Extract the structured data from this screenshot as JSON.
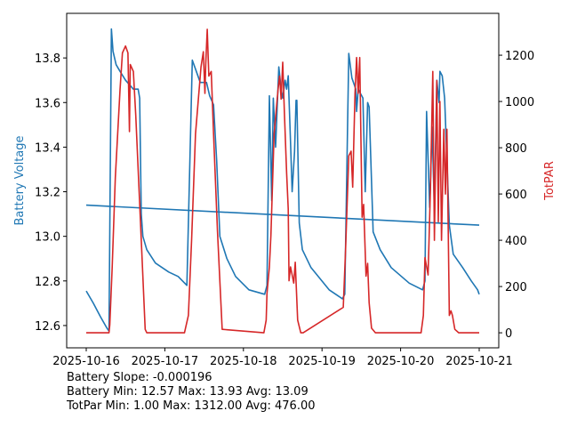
{
  "chart_data": {
    "type": "line",
    "x_start_date": "2025-10-16",
    "x_unit": "days since 2025-10-16",
    "xlim": [
      -0.249,
      5.249
    ],
    "x_ticks": [
      0,
      1,
      2,
      3,
      4,
      5
    ],
    "x_tick_labels": [
      "2025-10-16",
      "2025-10-17",
      "2025-10-18",
      "2025-10-19",
      "2025-10-20",
      "2025-10-21"
    ],
    "left_axis": {
      "label": "Battery Voltage",
      "color": "#1f77b4",
      "ylim": [
        12.5,
        14.0
      ],
      "ticks": [
        12.6,
        12.8,
        13.0,
        13.2,
        13.4,
        13.6,
        13.8
      ],
      "tick_labels": [
        "12.6",
        "12.8",
        "13.0",
        "13.2",
        "13.4",
        "13.6",
        "13.8"
      ]
    },
    "right_axis": {
      "label": "TotPAR",
      "color": "#d62728",
      "ylim": [
        -65,
        1381
      ],
      "ticks": [
        0,
        200,
        400,
        600,
        800,
        1000,
        1200
      ],
      "tick_labels": [
        "0",
        "200",
        "400",
        "600",
        "800",
        "1000",
        "1200"
      ]
    },
    "series": [
      {
        "name": "Battery Voltage",
        "axis": "left",
        "color": "#1f77b4",
        "x": [
          0,
          0.09,
          0.18,
          0.26,
          0.29,
          0.32,
          0.34,
          0.38,
          0.43,
          0.5,
          0.6,
          0.66,
          0.68,
          0.7,
          0.72,
          0.77,
          0.88,
          1.05,
          1.17,
          1.28,
          1.3,
          1.35,
          1.4,
          1.45,
          1.53,
          1.57,
          1.62,
          1.66,
          1.7,
          1.79,
          1.9,
          2.07,
          2.27,
          2.3,
          2.33,
          2.36,
          2.38,
          2.41,
          2.45,
          2.48,
          2.5,
          2.53,
          2.55,
          2.57,
          2.6,
          2.62,
          2.65,
          2.67,
          2.68,
          2.71,
          2.75,
          2.86,
          3.09,
          3.26,
          3.29,
          3.34,
          3.38,
          3.43,
          3.44,
          3.46,
          3.52,
          3.55,
          3.58,
          3.6,
          3.65,
          3.74,
          3.88,
          4.11,
          4.28,
          4.31,
          4.33,
          4.37,
          4.4,
          4.43,
          4.46,
          4.49,
          4.5,
          4.53,
          4.56,
          4.62,
          4.67,
          4.79,
          4.9,
          4.98,
          5.0
        ],
        "y": [
          12.755,
          12.7,
          12.64,
          12.59,
          12.575,
          13.93,
          13.83,
          13.77,
          13.74,
          13.7,
          13.66,
          13.66,
          13.62,
          13.1,
          13.0,
          12.94,
          12.88,
          12.84,
          12.82,
          12.78,
          13.06,
          13.79,
          13.74,
          13.69,
          13.69,
          13.63,
          13.59,
          13.34,
          13.0,
          12.9,
          12.82,
          12.76,
          12.74,
          12.78,
          13.63,
          13.16,
          13.62,
          13.4,
          13.76,
          13.66,
          13.62,
          13.7,
          13.66,
          13.72,
          13.42,
          13.2,
          13.38,
          13.61,
          13.61,
          13.06,
          12.94,
          12.86,
          12.76,
          12.72,
          12.74,
          13.82,
          13.71,
          13.66,
          13.56,
          13.66,
          13.62,
          13.2,
          13.6,
          13.58,
          13.02,
          12.94,
          12.86,
          12.79,
          12.76,
          12.8,
          13.56,
          13.13,
          13.49,
          13.12,
          13.7,
          13.6,
          13.74,
          13.72,
          13.62,
          13.05,
          12.92,
          12.86,
          12.8,
          12.76,
          12.74
        ]
      },
      {
        "name": "Battery Trend",
        "axis": "left",
        "color": "#1f77b4",
        "x": [
          0,
          5
        ],
        "y": [
          13.14,
          13.05
        ]
      },
      {
        "name": "TotPAR",
        "axis": "right",
        "color": "#d62728",
        "x": [
          0,
          0.29,
          0.3,
          0.33,
          0.37,
          0.43,
          0.46,
          0.5,
          0.53,
          0.55,
          0.56,
          0.6,
          0.63,
          0.69,
          0.75,
          0.77,
          1.25,
          1.3,
          1.34,
          1.39,
          1.46,
          1.49,
          1.51,
          1.52,
          1.54,
          1.56,
          1.59,
          1.62,
          1.67,
          1.73,
          2.26,
          2.29,
          2.3,
          2.33,
          2.35,
          2.39,
          2.44,
          2.46,
          2.48,
          2.5,
          2.52,
          2.55,
          2.57,
          2.58,
          2.6,
          2.64,
          2.66,
          2.69,
          2.73,
          2.76,
          3.27,
          3.3,
          3.34,
          3.37,
          3.39,
          3.42,
          3.44,
          3.46,
          3.48,
          3.51,
          3.53,
          3.56,
          3.58,
          3.6,
          3.63,
          3.68,
          3.7,
          4.26,
          4.29,
          4.31,
          4.35,
          4.38,
          4.41,
          4.43,
          4.46,
          4.48,
          4.5,
          4.52,
          4.55,
          4.57,
          4.59,
          4.62,
          4.64,
          4.66,
          4.69,
          4.74,
          5.0
        ],
        "y": [
          0,
          0,
          35,
          285,
          670,
          1050,
          1210,
          1240,
          1210,
          870,
          1160,
          1130,
          940,
          480,
          15,
          0,
          0,
          75,
          400,
          860,
          1150,
          1215,
          1035,
          1160,
          1312,
          1110,
          1130,
          860,
          440,
          15,
          0,
          55,
          170,
          285,
          420,
          860,
          1050,
          1110,
          1010,
          1170,
          960,
          690,
          535,
          225,
          285,
          215,
          305,
          55,
          0,
          0,
          110,
          360,
          765,
          785,
          630,
          1035,
          1190,
          1035,
          1190,
          500,
          555,
          245,
          300,
          130,
          20,
          0,
          0,
          0,
          75,
          325,
          250,
          630,
          1130,
          400,
          1090,
          480,
          1000,
          400,
          880,
          600,
          880,
          75,
          95,
          75,
          15,
          0,
          0
        ]
      }
    ],
    "annotations": [
      "Battery Slope: -0.000196",
      "Battery Min: 12.57 Max: 13.93 Avg: 13.09",
      "TotPar Min: 1.00 Max: 1312.00 Avg: 476.00"
    ]
  }
}
